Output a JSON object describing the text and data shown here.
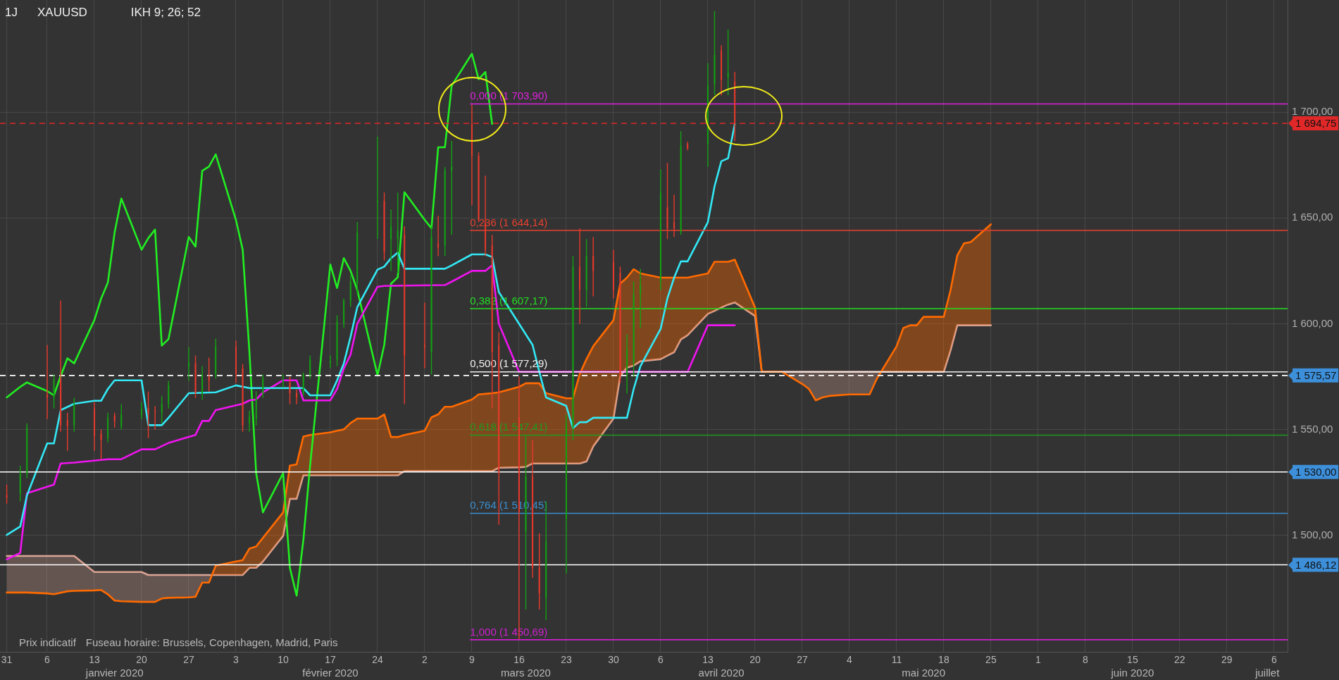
{
  "chart_data": {
    "type": "candlestick",
    "title": "XAUUSD",
    "subtitle": "IKH 9; 26; 52",
    "annotations": [
      "1J",
      "Prix indicatif",
      "Fuseau horaire: Brussels, Copenhagen, Madrid, Paris",
      "1 694,75",
      "1 575,57",
      "1 530,00",
      "1 486,12"
    ],
    "x": [
      "2019-12-31",
      "2020-01-02",
      "2020-01-03",
      "2020-01-06",
      "2020-01-07",
      "2020-01-08",
      "2020-01-09",
      "2020-01-10",
      "2020-01-13",
      "2020-01-14",
      "2020-01-15",
      "2020-01-16",
      "2020-01-17",
      "2020-01-20",
      "2020-01-21",
      "2020-01-22",
      "2020-01-23",
      "2020-01-24",
      "2020-01-27",
      "2020-01-28",
      "2020-01-29",
      "2020-01-30",
      "2020-01-31",
      "2020-02-03",
      "2020-02-04",
      "2020-02-05",
      "2020-02-06",
      "2020-02-07",
      "2020-02-10",
      "2020-02-11",
      "2020-02-12",
      "2020-02-13",
      "2020-02-14",
      "2020-02-17",
      "2020-02-18",
      "2020-02-19",
      "2020-02-20",
      "2020-02-21",
      "2020-02-24",
      "2020-02-25",
      "2020-02-26",
      "2020-02-27",
      "2020-02-28",
      "2020-03-02",
      "2020-03-03",
      "2020-03-04",
      "2020-03-05",
      "2020-03-06",
      "2020-03-09",
      "2020-03-10",
      "2020-03-11",
      "2020-03-12",
      "2020-03-13",
      "2020-03-16",
      "2020-03-17",
      "2020-03-18",
      "2020-03-19",
      "2020-03-20",
      "2020-03-23",
      "2020-03-24",
      "2020-03-25",
      "2020-03-26",
      "2020-03-27",
      "2020-03-30",
      "2020-03-31",
      "2020-04-01",
      "2020-04-02",
      "2020-04-03",
      "2020-04-06",
      "2020-04-07",
      "2020-04-08",
      "2020-04-09",
      "2020-04-10",
      "2020-04-13",
      "2020-04-14",
      "2020-04-15",
      "2020-04-16",
      "2020-04-17"
    ],
    "ohlc": [
      [
        1519,
        1524,
        1515,
        1518
      ],
      [
        1519.9,
        1533,
        1516,
        1529
      ],
      [
        1529,
        1553,
        1527,
        1551
      ],
      [
        1566.6,
        1590,
        1555,
        1565.2
      ],
      [
        1565,
        1576,
        1560,
        1573.7
      ],
      [
        1574,
        1611,
        1549,
        1552
      ],
      [
        1554.5,
        1558,
        1540,
        1551.7
      ],
      [
        1552,
        1565,
        1549,
        1562
      ],
      [
        1560,
        1563,
        1540,
        1547.1
      ],
      [
        1548,
        1550,
        1536,
        1545
      ],
      [
        1546,
        1558,
        1544,
        1555.5
      ],
      [
        1556.6,
        1558,
        1551,
        1554
      ],
      [
        1551.5,
        1562,
        1550,
        1557
      ],
      [
        1557,
        1563,
        1555,
        1560
      ],
      [
        1560.2,
        1568,
        1546,
        1557.2
      ],
      [
        1559,
        1561,
        1550,
        1558.7
      ],
      [
        1558,
        1566,
        1553,
        1562.2
      ],
      [
        1562,
        1573,
        1560,
        1571
      ],
      [
        1579.7,
        1589,
        1573,
        1581.7
      ],
      [
        1581.3,
        1585,
        1565,
        1567.2
      ],
      [
        1567,
        1580,
        1564,
        1576
      ],
      [
        1575.3,
        1584,
        1568,
        1573.3
      ],
      [
        1576.3,
        1593,
        1574,
        1589.4
      ],
      [
        1589,
        1592,
        1572,
        1576.3
      ],
      [
        1579,
        1581,
        1549,
        1552
      ],
      [
        1553,
        1559,
        1549,
        1556
      ],
      [
        1555,
        1568,
        1552,
        1565
      ],
      [
        1567,
        1576,
        1565,
        1574.3
      ],
      [
        1572.5,
        1576,
        1570,
        1573.5
      ],
      [
        1572.3,
        1575,
        1562,
        1567.2
      ],
      [
        1567.2,
        1569,
        1562,
        1565.2
      ],
      [
        1567,
        1577,
        1566,
        1576
      ],
      [
        1576,
        1585,
        1574,
        1583
      ],
      [
        1581.3,
        1585,
        1579,
        1582.3
      ],
      [
        1583,
        1604,
        1580,
        1601
      ],
      [
        1600,
        1612,
        1598,
        1610.9
      ],
      [
        1610.9,
        1623,
        1608,
        1619.9
      ],
      [
        1618.9,
        1648,
        1614,
        1643.1
      ],
      [
        1657.5,
        1688.4,
        1640,
        1658.2
      ],
      [
        1658,
        1662,
        1630,
        1634
      ],
      [
        1640,
        1654,
        1625,
        1646
      ],
      [
        1640,
        1662,
        1624,
        1644
      ],
      [
        1642,
        1646,
        1562,
        1585
      ],
      [
        1590,
        1610,
        1579,
        1589
      ],
      [
        1586.7,
        1646,
        1576,
        1641
      ],
      [
        1638,
        1651,
        1632,
        1636
      ],
      [
        1637,
        1674,
        1632,
        1672.3
      ],
      [
        1672.3,
        1686.4,
        1642,
        1674.3
      ],
      [
        1694.4,
        1703.5,
        1656,
        1679.3
      ],
      [
        1679.3,
        1681,
        1648,
        1649.1
      ],
      [
        1648,
        1670,
        1632,
        1635
      ],
      [
        1637,
        1642,
        1560,
        1586.7
      ],
      [
        1590,
        1596,
        1505,
        1529.4
      ],
      [
        1556,
        1575,
        1451,
        1510.9
      ],
      [
        1501.8,
        1547,
        1465,
        1528
      ],
      [
        1528,
        1545,
        1480,
        1484.7
      ],
      [
        1484.7,
        1501,
        1465,
        1472.6
      ],
      [
        1470.6,
        1516,
        1460,
        1497.2
      ],
      [
        1507.8,
        1557,
        1482,
        1553.1
      ],
      [
        1551,
        1632,
        1545,
        1627
      ],
      [
        1627,
        1645,
        1600,
        1616
      ],
      [
        1616,
        1640,
        1608,
        1632
      ],
      [
        1632,
        1641,
        1613,
        1625
      ],
      [
        1629,
        1635,
        1612,
        1616
      ],
      [
        1624,
        1627,
        1572,
        1575.5
      ],
      [
        1576,
        1595,
        1567,
        1588
      ],
      [
        1581.5,
        1620,
        1575,
        1613.8
      ],
      [
        1614,
        1626,
        1598,
        1618
      ],
      [
        1620,
        1673,
        1616,
        1662
      ],
      [
        1655,
        1676,
        1640,
        1645
      ],
      [
        1648,
        1661,
        1641,
        1645
      ],
      [
        1643.4,
        1691,
        1642,
        1683.9
      ],
      [
        1685,
        1686,
        1682,
        1683
      ],
      [
        1684.9,
        1723.2,
        1674.2,
        1712.5
      ],
      [
        1713.1,
        1747.8,
        1708,
        1727
      ],
      [
        1729,
        1731.6,
        1708,
        1715.1
      ],
      [
        1716.5,
        1739,
        1708,
        1718.5
      ],
      [
        1714.5,
        1719,
        1686.3,
        1694.75
      ]
    ],
    "colors": [
      "#e8392b",
      "#12a012",
      "#12a012",
      "#e8392b",
      "#12a012",
      "#e8392b",
      "#e8392b",
      "#12a012",
      "#e8392b",
      "#e8392b",
      "#12a012",
      "#e8392b",
      "#12a012",
      "#12a012",
      "#e8392b",
      "#e8392b",
      "#12a012",
      "#12a012",
      "#12a012",
      "#e8392b",
      "#12a012",
      "#e8392b",
      "#12a012",
      "#e8392b",
      "#e8392b",
      "#12a012",
      "#12a012",
      "#12a012",
      "#12a012",
      "#e8392b",
      "#e8392b",
      "#12a012",
      "#12a012",
      "#12a012",
      "#12a012",
      "#12a012",
      "#12a012",
      "#12a012",
      "#12a012",
      "#e8392b",
      "#12a012",
      "#12a012",
      "#e8392b",
      "#e8392b",
      "#12a012",
      "#e8392b",
      "#12a012",
      "#12a012",
      "#e8392b",
      "#e8392b",
      "#e8392b",
      "#e8392b",
      "#e8392b",
      "#e8392b",
      "#12a012",
      "#e8392b",
      "#e8392b",
      "#12a012",
      "#12a012",
      "#12a012",
      "#e8392b",
      "#12a012",
      "#e8392b",
      "#e8392b",
      "#e8392b",
      "#12a012",
      "#12a012",
      "#12a012",
      "#12a012",
      "#e8392b",
      "#e8392b",
      "#12a012",
      "#e8392b",
      "#12a012",
      "#12a012",
      "#e8392b",
      "#12a012",
      "#e8392b"
    ],
    "series": [
      {
        "type": "line",
        "color": "#33e8f5",
        "x": [
          "2019-12-31",
          "2020-01-02",
          "2020-01-03",
          "2020-01-06",
          "2020-01-07",
          "2020-01-08",
          "2020-01-10",
          "2020-01-13",
          "2020-01-14",
          "2020-01-15",
          "2020-01-16",
          "2020-01-20",
          "2020-01-21",
          "2020-01-23",
          "2020-01-24",
          "2020-01-27",
          "2020-01-31",
          "2020-02-03",
          "2020-02-05",
          "2020-02-13",
          "2020-02-14",
          "2020-02-17",
          "2020-02-18",
          "2020-02-19",
          "2020-02-20",
          "2020-02-21",
          "2020-02-24",
          "2020-02-25",
          "2020-02-26",
          "2020-02-27",
          "2020-02-28",
          "2020-03-05",
          "2020-03-06",
          "2020-03-09",
          "2020-03-11",
          "2020-03-12",
          "2020-03-13",
          "2020-03-16",
          "2020-03-18",
          "2020-03-19",
          "2020-03-20",
          "2020-03-23",
          "2020-03-24",
          "2020-03-25",
          "2020-03-26",
          "2020-03-27",
          "2020-04-01",
          "2020-04-02",
          "2020-04-03",
          "2020-04-06",
          "2020-04-07",
          "2020-04-08",
          "2020-04-09",
          "2020-04-10",
          "2020-04-13",
          "2020-04-14",
          "2020-04-15",
          "2020-04-16",
          "2020-04-17"
        ],
        "values": [
          1500.2,
          1504.2,
          1518.9,
          1543.5,
          1543.5,
          1559.2,
          1562.2,
          1563.6,
          1563.6,
          1569.2,
          1573.3,
          1573.3,
          1552.1,
          1552.1,
          1555.6,
          1567.2,
          1567.6,
          1570.9,
          1569.6,
          1569.6,
          1566.2,
          1566.2,
          1573.3,
          1581.3,
          1593.8,
          1607.9,
          1625.6,
          1627,
          1631,
          1633.6,
          1626,
          1626,
          1627.6,
          1632.8,
          1632.8,
          1631.6,
          1615,
          1600,
          1590,
          1577.3,
          1565.2,
          1561.2,
          1550.7,
          1553.5,
          1553.5,
          1555.6,
          1555.6,
          1569.2,
          1580,
          1597.6,
          1612,
          1621.8,
          1629.5,
          1629.5,
          1648,
          1665,
          1676.8,
          1678.2,
          1694.4
        ]
      },
      {
        "type": "line",
        "color": "#f014f0",
        "x": [
          "2019-12-31",
          "2020-01-02",
          "2020-01-03",
          "2020-01-06",
          "2020-01-07",
          "2020-01-08",
          "2020-01-10",
          "2020-01-15",
          "2020-01-17",
          "2020-01-20",
          "2020-01-22",
          "2020-01-24",
          "2020-01-28",
          "2020-01-29",
          "2020-01-30",
          "2020-01-31",
          "2020-02-04",
          "2020-02-05",
          "2020-02-06",
          "2020-02-07",
          "2020-02-10",
          "2020-02-12",
          "2020-02-13",
          "2020-02-17",
          "2020-02-18",
          "2020-02-19",
          "2020-02-20",
          "2020-02-21",
          "2020-02-24",
          "2020-02-25",
          "2020-03-05",
          "2020-03-06",
          "2020-03-09",
          "2020-03-11",
          "2020-03-12",
          "2020-03-13",
          "2020-03-16",
          "2020-04-10",
          "2020-04-13",
          "2020-04-17"
        ],
        "values": [
          1488.7,
          1491.7,
          1519.9,
          1523,
          1524,
          1534,
          1534.4,
          1536,
          1536,
          1540.7,
          1540.7,
          1543.7,
          1547.5,
          1554.1,
          1554.1,
          1559.2,
          1562.2,
          1563.8,
          1564.2,
          1567.6,
          1573.3,
          1573.3,
          1563.8,
          1563.8,
          1569.2,
          1578.9,
          1585.4,
          1600,
          1617.5,
          1617.9,
          1618.3,
          1619.9,
          1625,
          1625,
          1627.6,
          1600,
          1577.3,
          1577.3,
          1599.3,
          1599.3
        ]
      },
      {
        "type": "line",
        "color": "#22ee22",
        "x": [
          "2019-12-31",
          "2020-01-02",
          "2020-01-03",
          "2020-01-06",
          "2020-01-07",
          "2020-01-08",
          "2020-01-09",
          "2020-01-10",
          "2020-01-13",
          "2020-01-14",
          "2020-01-15",
          "2020-01-16",
          "2020-01-17",
          "2020-01-20",
          "2020-01-21",
          "2020-01-22",
          "2020-01-23",
          "2020-01-24",
          "2020-01-27",
          "2020-01-28",
          "2020-01-29",
          "2020-01-30",
          "2020-01-31",
          "2020-02-03",
          "2020-02-04",
          "2020-02-05",
          "2020-02-06",
          "2020-02-07",
          "2020-02-10",
          "2020-02-11",
          "2020-02-12",
          "2020-02-13",
          "2020-02-14",
          "2020-02-17",
          "2020-02-18",
          "2020-02-19",
          "2020-02-20",
          "2020-02-21",
          "2020-02-24",
          "2020-02-25",
          "2020-02-26",
          "2020-02-27",
          "2020-02-28",
          "2020-03-02",
          "2020-03-03",
          "2020-03-04",
          "2020-03-05",
          "2020-03-06",
          "2020-03-09",
          "2020-03-10",
          "2020-03-11",
          "2020-03-12"
        ],
        "values": [
          1565.2,
          1570.2,
          1572.3,
          1568.2,
          1566.2,
          1575.3,
          1583.7,
          1581.3,
          1601.8,
          1611.9,
          1619.5,
          1643.1,
          1659.2,
          1635,
          1640.5,
          1644.5,
          1589.7,
          1592.8,
          1641,
          1636.5,
          1672.3,
          1674.3,
          1680,
          1649.1,
          1635,
          1586.7,
          1529.4,
          1510.9,
          1529.4,
          1484.7,
          1471.6,
          1497.8,
          1533,
          1628,
          1616.9,
          1631,
          1625,
          1616,
          1575.7,
          1590,
          1618.9,
          1622,
          1662.2,
          1649.1,
          1645.1,
          1683.4,
          1683.4,
          1712.5,
          1727.6,
          1715.6,
          1719,
          1694.4
        ]
      },
      {
        "type": "line",
        "color": "#ff6a00",
        "x": [
          "2019-12-31",
          "2020-01-02",
          "2020-01-03",
          "2020-01-06",
          "2020-01-07",
          "2020-01-08",
          "2020-01-09",
          "2020-01-10",
          "2020-01-13",
          "2020-01-14",
          "2020-01-15",
          "2020-01-16",
          "2020-01-17",
          "2020-01-20",
          "2020-01-21",
          "2020-01-22",
          "2020-01-23",
          "2020-01-24",
          "2020-01-27",
          "2020-01-28",
          "2020-01-29",
          "2020-01-30",
          "2020-01-31",
          "2020-02-03",
          "2020-02-04",
          "2020-02-05",
          "2020-02-06",
          "2020-02-07",
          "2020-02-10",
          "2020-02-11",
          "2020-02-12",
          "2020-02-13",
          "2020-02-14",
          "2020-02-17",
          "2020-02-18",
          "2020-02-19",
          "2020-02-20",
          "2020-02-21",
          "2020-02-24",
          "2020-02-25",
          "2020-02-26",
          "2020-02-27",
          "2020-02-28",
          "2020-03-02",
          "2020-03-03",
          "2020-03-04",
          "2020-03-05",
          "2020-03-06",
          "2020-03-09",
          "2020-03-10",
          "2020-03-11",
          "2020-03-12",
          "2020-03-13",
          "2020-03-16",
          "2020-03-17",
          "2020-03-18",
          "2020-03-19",
          "2020-03-20",
          "2020-03-23",
          "2020-03-24",
          "2020-03-25",
          "2020-03-26",
          "2020-03-27",
          "2020-03-30",
          "2020-03-31",
          "2020-04-01",
          "2020-04-02",
          "2020-04-03",
          "2020-04-06",
          "2020-04-07",
          "2020-04-08",
          "2020-04-09",
          "2020-04-10",
          "2020-04-13",
          "2020-04-14",
          "2020-04-15",
          "2020-04-16",
          "2020-04-17",
          "2020-04-20",
          "2020-04-21",
          "2020-04-22",
          "2020-04-23",
          "2020-04-24",
          "2020-04-27",
          "2020-04-28",
          "2020-04-29",
          "2020-04-30",
          "2020-05-01",
          "2020-05-04",
          "2020-05-05",
          "2020-05-06",
          "2020-05-07",
          "2020-05-08",
          "2020-05-11",
          "2020-05-12",
          "2020-05-13",
          "2020-05-14",
          "2020-05-15",
          "2020-05-18",
          "2020-05-19",
          "2020-05-20",
          "2020-05-21",
          "2020-05-22",
          "2020-05-25"
        ],
        "values": [
          1473,
          1473,
          1473,
          1472.6,
          1472.2,
          1472.9,
          1473.6,
          1473.8,
          1474,
          1474.2,
          1472.2,
          1469.2,
          1468.9,
          1468.6,
          1468.6,
          1468.6,
          1470.2,
          1470.5,
          1470.7,
          1471,
          1477.7,
          1477.7,
          1485.7,
          1487.7,
          1488.3,
          1493.8,
          1494.8,
          1498.8,
          1510.9,
          1533,
          1533.6,
          1546.7,
          1547.5,
          1548.7,
          1549.5,
          1550.1,
          1553.1,
          1555.2,
          1555.2,
          1557.2,
          1546.5,
          1546.5,
          1547.5,
          1549.5,
          1555.8,
          1557.2,
          1560.8,
          1560.8,
          1564.2,
          1566.6,
          1566.9,
          1567.2,
          1567.6,
          1570.2,
          1571.9,
          1571.9,
          1571.9,
          1567.2,
          1564.8,
          1564.8,
          1576.3,
          1583.3,
          1589.4,
          1601.7,
          1619,
          1621.8,
          1625.8,
          1623.8,
          1621.8,
          1621.8,
          1621.8,
          1621.8,
          1621.8,
          1623.8,
          1629.3,
          1629.3,
          1629.3,
          1630.3,
          1607.7,
          1577.3,
          1577.3,
          1577.3,
          1577.3,
          1571.6,
          1569.2,
          1563.8,
          1565.2,
          1565.9,
          1566.6,
          1566.6,
          1566.6,
          1566.6,
          1573.6,
          1589.4,
          1598,
          1599.3,
          1599.3,
          1603.3,
          1603.3,
          1615.8,
          1632.3,
          1638,
          1638.6,
          1647
        ],
        "upper": [
          1473,
          1473,
          1473,
          1472.6,
          1472.2,
          1472.9,
          1473.6,
          1473.8,
          1474,
          1474.2,
          1472.2,
          1469.2,
          1468.9,
          1468.6,
          1468.6,
          1468.6,
          1470.2,
          1470.5,
          1470.7,
          1471,
          1477.7,
          1477.7,
          1485.7,
          1487.7,
          1488.3,
          1493.8,
          1494.8,
          1498.8,
          1510.9,
          1533,
          1533.6,
          1546.7,
          1547.5,
          1548.7,
          1549.5,
          1550.1,
          1553.1,
          1555.2,
          1555.2,
          1557.2,
          1546.5,
          1546.5,
          1547.5,
          1549.5,
          1555.8,
          1557.2,
          1560.8,
          1560.8,
          1564.2,
          1566.6,
          1566.9,
          1567.2,
          1567.6,
          1570.2,
          1571.9,
          1571.9,
          1571.9,
          1567.2,
          1564.8,
          1564.8,
          1576.3,
          1583.3,
          1589.4,
          1601.7,
          1619,
          1621.8,
          1625.8,
          1623.8,
          1621.8,
          1621.8,
          1621.8,
          1621.8,
          1621.8,
          1623.8,
          1629.3,
          1629.3,
          1629.3,
          1630.3,
          1607.7,
          1577.3,
          1577.3,
          1577.3,
          1577.3,
          1571.6,
          1569.2,
          1563.8,
          1565.2,
          1565.9,
          1566.6,
          1566.6,
          1566.6,
          1566.6,
          1573.6,
          1589.4,
          1598,
          1599.3,
          1599.3,
          1603.3,
          1603.3,
          1615.8,
          1632.3,
          1638,
          1638.6,
          1647
        ],
        "lower": [
          1490.3,
          1490.3,
          1490.3,
          1490.3,
          1490.3,
          1490.3,
          1490.3,
          1490.3,
          1482.7,
          1482.7,
          1482.7,
          1482.7,
          1482.7,
          1482.7,
          1481.3,
          1481.3,
          1481.3,
          1481.3,
          1481.3,
          1481.3,
          1481.3,
          1481.3,
          1481.3,
          1481.3,
          1481.3,
          1484.7,
          1484.7,
          1487.7,
          1499.8,
          1517.3,
          1517.3,
          1528.4,
          1528.4,
          1528.4,
          1528.4,
          1528.4,
          1528.4,
          1528.4,
          1528.4,
          1528.4,
          1528.4,
          1528.4,
          1530.4,
          1530.4,
          1530.4,
          1530.4,
          1530.4,
          1530.4,
          1530.4,
          1530.4,
          1530.4,
          1530.4,
          1532,
          1532.2,
          1532.4,
          1534,
          1534,
          1534,
          1534,
          1534,
          1534,
          1535,
          1542.1,
          1555.2,
          1575.3,
          1579.3,
          1580.3,
          1582.3,
          1583.3,
          1585,
          1586.6,
          1592.6,
          1594.6,
          1604.7,
          1606.1,
          1607.7,
          1609.1,
          1610.1,
          1603.7,
          1577.3,
          1577.3,
          1577.3,
          1577.3,
          1577.3,
          1577.3,
          1577.3,
          1577.3,
          1577.3,
          1577.3,
          1577.3,
          1577.3,
          1577.3,
          1577.3,
          1577.3,
          1577.3,
          1577.3,
          1577.3,
          1577.3,
          1577.3,
          1587.4,
          1599.3,
          1599.3,
          1599.3,
          1599.3
        ]
      },
      {
        "type": "line",
        "color": "#d9a496",
        "x": [
          "2019-12-31",
          "2020-01-02",
          "2020-01-03",
          "2020-01-06",
          "2020-01-07",
          "2020-01-08",
          "2020-01-09",
          "2020-01-10",
          "2020-01-13",
          "2020-01-14",
          "2020-01-15",
          "2020-01-16",
          "2020-01-17",
          "2020-01-20",
          "2020-01-21",
          "2020-01-22",
          "2020-01-23",
          "2020-01-24",
          "2020-01-27",
          "2020-01-28",
          "2020-01-29",
          "2020-01-30",
          "2020-01-31",
          "2020-02-03",
          "2020-02-04",
          "2020-02-05",
          "2020-02-06",
          "2020-02-07",
          "2020-02-10",
          "2020-02-11",
          "2020-02-12",
          "2020-02-13",
          "2020-02-14",
          "2020-02-17",
          "2020-02-18",
          "2020-02-19",
          "2020-02-20",
          "2020-02-21",
          "2020-02-24",
          "2020-02-25",
          "2020-02-26",
          "2020-02-27",
          "2020-02-28",
          "2020-03-02",
          "2020-03-03",
          "2020-03-04",
          "2020-03-05",
          "2020-03-06",
          "2020-03-09",
          "2020-03-10",
          "2020-03-11",
          "2020-03-12",
          "2020-03-13",
          "2020-03-16",
          "2020-03-17",
          "2020-03-18",
          "2020-03-19",
          "2020-03-20",
          "2020-03-23",
          "2020-03-24",
          "2020-03-25",
          "2020-03-26",
          "2020-03-27",
          "2020-03-30",
          "2020-03-31",
          "2020-04-01",
          "2020-04-02",
          "2020-04-03",
          "2020-04-06",
          "2020-04-07",
          "2020-04-08",
          "2020-04-09",
          "2020-04-10",
          "2020-04-13",
          "2020-04-14",
          "2020-04-15",
          "2020-04-16",
          "2020-04-17",
          "2020-04-20",
          "2020-04-21",
          "2020-04-22",
          "2020-04-23",
          "2020-04-24",
          "2020-04-27",
          "2020-04-28",
          "2020-04-29",
          "2020-04-30",
          "2020-05-01",
          "2020-05-04",
          "2020-05-05",
          "2020-05-06",
          "2020-05-07",
          "2020-05-08",
          "2020-05-11",
          "2020-05-12",
          "2020-05-13",
          "2020-05-14",
          "2020-05-15",
          "2020-05-18",
          "2020-05-19",
          "2020-05-20",
          "2020-05-21",
          "2020-05-22",
          "2020-05-25"
        ],
        "values": [
          1490.3,
          1490.3,
          1490.3,
          1490.3,
          1490.3,
          1490.3,
          1490.3,
          1490.3,
          1482.7,
          1482.7,
          1482.7,
          1482.7,
          1482.7,
          1482.7,
          1481.3,
          1481.3,
          1481.3,
          1481.3,
          1481.3,
          1481.3,
          1481.3,
          1481.3,
          1481.3,
          1481.3,
          1481.3,
          1484.7,
          1484.7,
          1487.7,
          1499.8,
          1517.3,
          1517.3,
          1528.4,
          1528.4,
          1528.4,
          1528.4,
          1528.4,
          1528.4,
          1528.4,
          1528.4,
          1528.4,
          1528.4,
          1528.4,
          1530.4,
          1530.4,
          1530.4,
          1530.4,
          1530.4,
          1530.4,
          1530.4,
          1530.4,
          1530.4,
          1530.4,
          1532,
          1532.2,
          1532.4,
          1534,
          1534,
          1534,
          1534,
          1534,
          1534,
          1535,
          1542.1,
          1555.2,
          1575.3,
          1579.3,
          1580.3,
          1582.3,
          1583.3,
          1585,
          1586.6,
          1592.6,
          1594.6,
          1604.7,
          1606.1,
          1607.7,
          1609.1,
          1610.1,
          1603.7,
          1577.3,
          1577.3,
          1577.3,
          1577.3,
          1577.3,
          1577.3,
          1577.3,
          1577.3,
          1577.3,
          1577.3,
          1577.3,
          1577.3,
          1577.3,
          1577.3,
          1577.3,
          1577.3,
          1577.3,
          1577.3,
          1577.3,
          1577.3,
          1587.4,
          1599.3,
          1599.3,
          1599.3,
          1599.3
        ]
      }
    ],
    "xlim": [
      "2019-12-30",
      "2020-07-08"
    ],
    "xticks": [
      {
        "value": "2019-12-31",
        "label": "31"
      },
      {
        "value": "2020-01-06",
        "label": "6"
      },
      {
        "value": "2020-01-13",
        "label": "13"
      },
      {
        "value": "2020-01-20",
        "label": "20"
      },
      {
        "value": "2020-01-27",
        "label": "27"
      },
      {
        "value": "2020-02-03",
        "label": "3"
      },
      {
        "value": "2020-02-10",
        "label": "10"
      },
      {
        "value": "2020-02-17",
        "label": "17"
      },
      {
        "value": "2020-02-24",
        "label": "24"
      },
      {
        "value": "2020-03-02",
        "label": "2"
      },
      {
        "value": "2020-03-09",
        "label": "9"
      },
      {
        "value": "2020-03-16",
        "label": "16"
      },
      {
        "value": "2020-03-23",
        "label": "23"
      },
      {
        "value": "2020-03-30",
        "label": "30"
      },
      {
        "value": "2020-04-06",
        "label": "6"
      },
      {
        "value": "2020-04-13",
        "label": "13"
      },
      {
        "value": "2020-04-20",
        "label": "20"
      },
      {
        "value": "2020-04-27",
        "label": "27"
      },
      {
        "value": "2020-05-04",
        "label": "4"
      },
      {
        "value": "2020-05-11",
        "label": "11"
      },
      {
        "value": "2020-05-18",
        "label": "18"
      },
      {
        "value": "2020-05-25",
        "label": "25"
      },
      {
        "value": "2020-06-01",
        "label": "1"
      },
      {
        "value": "2020-06-08",
        "label": "8"
      },
      {
        "value": "2020-06-15",
        "label": "15"
      },
      {
        "value": "2020-06-22",
        "label": "22"
      },
      {
        "value": "2020-06-29",
        "label": "29"
      },
      {
        "value": "2020-07-06",
        "label": "6"
      }
    ],
    "x2lim": [
      "2019-12-30",
      "2020-07-08"
    ],
    "x2ticks": [
      {
        "value": "2020-01-16",
        "label": "janvier 2020"
      },
      {
        "value": "2020-02-17",
        "label": "février 2020"
      },
      {
        "value": "2020-03-17",
        "label": "mars 2020"
      },
      {
        "value": "2020-04-15",
        "label": "avril 2020"
      },
      {
        "value": "2020-05-15",
        "label": "mai 2020"
      },
      {
        "value": "2020-06-15",
        "label": "juin 2020"
      },
      {
        "value": "2020-07-05",
        "label": "juillet"
      }
    ],
    "ylim": [
      1445,
      1753
    ],
    "yticks": [
      {
        "value": 1500,
        "label": "1 500,00"
      },
      {
        "value": 1550,
        "label": "1 550,00"
      },
      {
        "value": 1600,
        "label": "1 600,00"
      },
      {
        "value": 1650,
        "label": "1 650,00"
      },
      {
        "value": 1700,
        "label": "1 700,00"
      }
    ],
    "ref_lines": [
      {
        "axis": "y",
        "value": 1703.9,
        "label": "0,000 (1 703,90)",
        "color": "#e020e0"
      },
      {
        "axis": "y",
        "value": 1644.14,
        "label": "0,236 (1 644,14)",
        "color": "#e8412f"
      },
      {
        "axis": "y",
        "value": 1607.17,
        "label": "0,382 (1 607,17)",
        "color": "#22e022"
      },
      {
        "axis": "y",
        "value": 1577.29,
        "label": "0,500 (1 577,29)",
        "color": "#f0f0f0"
      },
      {
        "axis": "y",
        "value": 1547.41,
        "label": "0,618 (1 547,41)",
        "color": "#1e9a1e"
      },
      {
        "axis": "y",
        "value": 1510.45,
        "label": "0,764 (1 510,45)",
        "color": "#3a8fd0"
      },
      {
        "axis": "y",
        "value": 1450.69,
        "label": "1,000 (1 450,69)",
        "color": "#d020d0"
      },
      {
        "axis": "y",
        "value": 1694.75,
        "color": "#e02828",
        "line_style": "dashed"
      },
      {
        "axis": "y",
        "value": 1575.57,
        "color": "#ffffff",
        "line_style": "dashed"
      },
      {
        "axis": "y",
        "value": 1530,
        "color": "#ffffff"
      },
      {
        "axis": "y",
        "value": 1486.12,
        "color": "#ffffff"
      }
    ],
    "grid": true,
    "legend": false
  }
}
